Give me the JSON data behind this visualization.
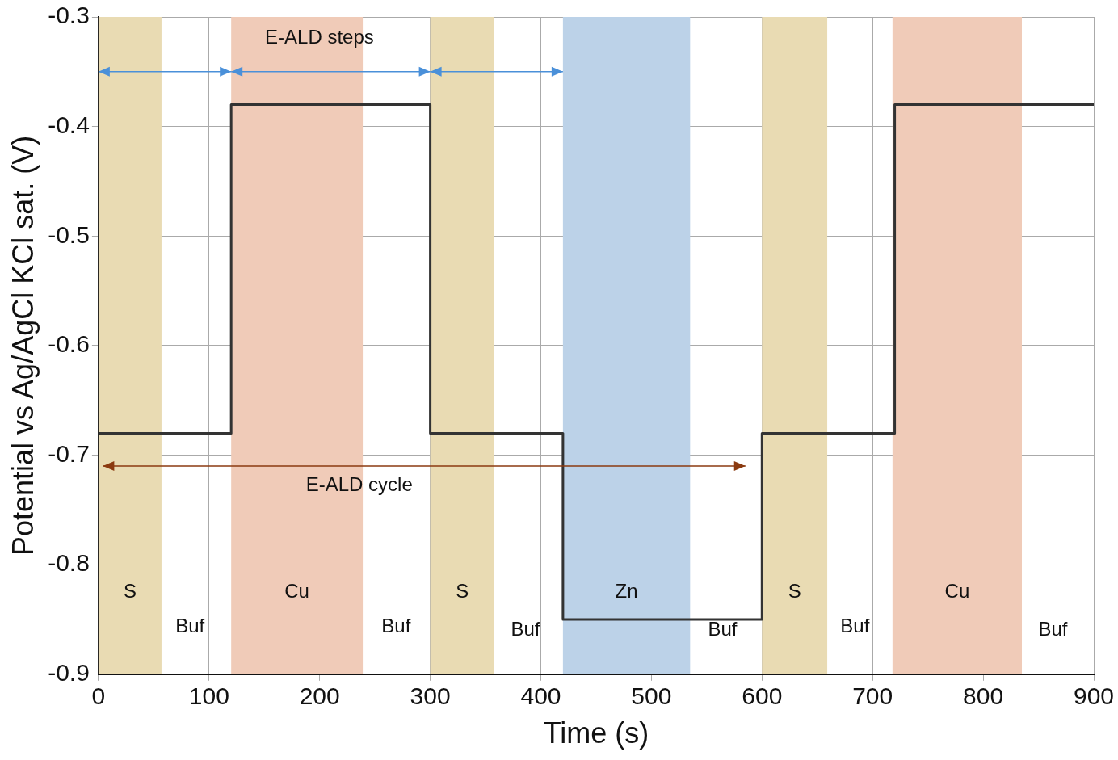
{
  "chart_data": {
    "type": "step",
    "xlabel": "Time (s)",
    "ylabel": "Potential vs Ag/AgCl KCl sat. (V)",
    "x": [
      0,
      120,
      300,
      420,
      600,
      720,
      900
    ],
    "series": [
      {
        "color": "#333333",
        "values": [
          -0.68,
          -0.38,
          -0.68,
          -0.85,
          -0.68,
          -0.38,
          -0.38
        ]
      }
    ],
    "xlim": [
      0,
      900
    ],
    "xticks": [
      0,
      100,
      200,
      300,
      400,
      500,
      600,
      700,
      800,
      900
    ],
    "ylim": [
      -0.9,
      -0.3
    ],
    "yticks": [
      -0.9,
      -0.8,
      -0.7,
      -0.6,
      -0.5,
      -0.4,
      -0.3
    ],
    "grid": true,
    "legend": false,
    "bands": [
      {
        "axis": "x",
        "from": 0,
        "to": 57,
        "label": "S",
        "color": "#e9dbb3"
      },
      {
        "axis": "x",
        "from": 120,
        "to": 239,
        "label": "Cu",
        "color": "#f0cbb8"
      },
      {
        "axis": "x",
        "from": 300,
        "to": 358,
        "label": "S",
        "color": "#e9dbb3"
      },
      {
        "axis": "x",
        "from": 420,
        "to": 535,
        "label": "Zn",
        "color": "#bcd2e8"
      },
      {
        "axis": "x",
        "from": 600,
        "to": 659,
        "label": "S",
        "color": "#e9dbb3"
      },
      {
        "axis": "x",
        "from": 718,
        "to": 835,
        "label": "Cu",
        "color": "#f0cbb8"
      }
    ],
    "annotations": [
      "E-ALD steps",
      "E-ALD cycle",
      "Buf",
      "Buf",
      "Buf",
      "Buf",
      "Buf",
      "Buf"
    ]
  }
}
